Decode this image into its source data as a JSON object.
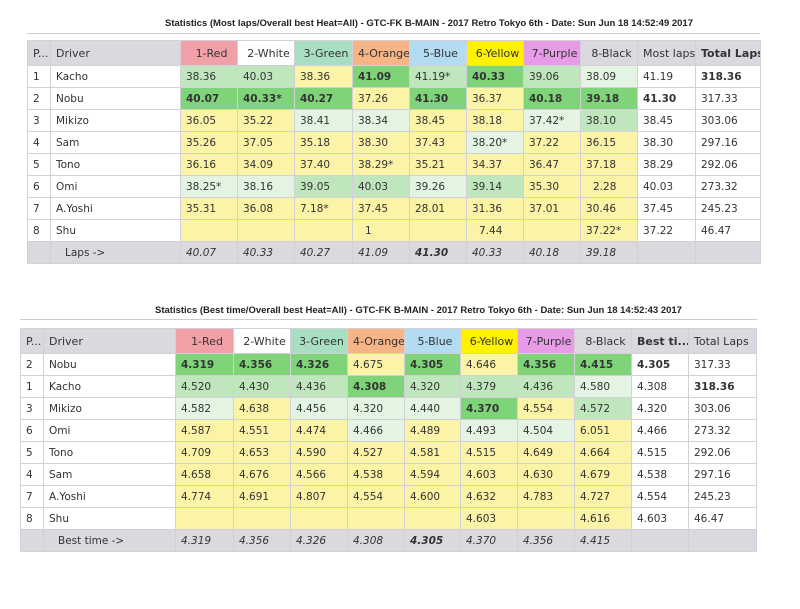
{
  "colors": {
    "1-Red": "#f2a0a8",
    "2-White": "#ffffff",
    "3-Green": "#a8dfc3",
    "4-Orange": "#f6b487",
    "5-Blue": "#b3dcf3",
    "6-Yellow": "#fff200",
    "7-Purple": "#e89ce8",
    "8-Black": "#dcd8e0"
  },
  "table1": {
    "title": "Statistics (Most laps/Overall best Heat=All) - GTC-FK B-MAIN - 2017 Retro Tokyo 6th - Date: Sun Jun 18 14:52:49 2017",
    "headers": [
      "P...",
      "Driver",
      "1-Red",
      "2-White",
      "3-Green",
      "4-Orange",
      "5-Blue",
      "6-Yellow",
      "7-Purple",
      "8-Black",
      "Most laps",
      "Total Laps"
    ],
    "rows": [
      {
        "p": "1",
        "driver": "Kacho",
        "cells": [
          "38.36",
          "40.03",
          "38.36",
          "41.09",
          "41.19*",
          "40.33",
          "39.06",
          "38.09"
        ],
        "shade": "mmygmgml",
        "bold": "00010100",
        "best": "41.19",
        "total": "318.36",
        "total_bold": true
      },
      {
        "p": "2",
        "driver": "Nobu",
        "cells": [
          "40.07",
          "40.33*",
          "40.27",
          "37.26",
          "41.30",
          "36.37",
          "40.18",
          "39.18"
        ],
        "shade": "gggygygg",
        "bold": "11101011",
        "best": "41.30",
        "best_bold": true,
        "total": "317.33"
      },
      {
        "p": "3",
        "driver": "Mikizo",
        "cells": [
          "36.05",
          "35.22",
          "38.41",
          "38.34",
          "38.45",
          "38.18",
          "37.42*",
          "38.10"
        ],
        "shade": "yyllyylm",
        "bold": "00000000",
        "best": "38.45",
        "total": "303.06"
      },
      {
        "p": "4",
        "driver": "Sam",
        "cells": [
          "35.26",
          "37.05",
          "35.18",
          "38.30",
          "37.43",
          "38.20*",
          "37.22",
          "36.15"
        ],
        "shade": "yyyyylyy",
        "bold": "00000000",
        "best": "38.30",
        "total": "297.16"
      },
      {
        "p": "5",
        "driver": "Tono",
        "cells": [
          "36.16",
          "34.09",
          "37.40",
          "38.29*",
          "35.21",
          "34.37",
          "36.47",
          "37.18"
        ],
        "shade": "yyyyyyyy",
        "bold": "00000000",
        "best": "38.29",
        "total": "292.06"
      },
      {
        "p": "6",
        "driver": "Omi",
        "cells": [
          "38.25*",
          "38.16",
          "39.05",
          "40.03",
          "39.26",
          "39.14",
          "35.30",
          "2.28"
        ],
        "shade": "llmmlmyy",
        "bold": "00000000",
        "best": "40.03",
        "total": "273.32"
      },
      {
        "p": "7",
        "driver": "A.Yoshi",
        "cells": [
          "35.31",
          "36.08",
          "7.18*",
          "37.45",
          "28.01",
          "31.36",
          "37.01",
          "30.46"
        ],
        "shade": "yyyyyyyy",
        "bold": "00000000",
        "best": "37.45",
        "total": "245.23"
      },
      {
        "p": "8",
        "driver": "Shu",
        "cells": [
          "",
          "",
          "",
          "1",
          "",
          "7.44",
          "",
          "37.22*"
        ],
        "shade": "yyyyyyyy",
        "bold": "00000000",
        "best": "37.22",
        "total": "46.47"
      }
    ],
    "footer": {
      "label": "Laps ->",
      "cells": [
        "40.07",
        "40.33",
        "40.27",
        "41.09",
        "41.30",
        "40.33",
        "40.18",
        "39.18"
      ],
      "bold": "00001000"
    }
  },
  "table2": {
    "title": "Statistics (Best time/Overall best Heat=All) - GTC-FK B-MAIN - 2017 Retro Tokyo 6th - Date: Sun Jun 18 14:52:43 2017",
    "headers": [
      "P...",
      "Driver",
      "1-Red",
      "2-White",
      "3-Green",
      "4-Orange",
      "5-Blue",
      "6-Yellow",
      "7-Purple",
      "8-Black",
      "Best ti...",
      "Total Laps"
    ],
    "rows": [
      {
        "p": "2",
        "driver": "Nobu",
        "cells": [
          "4.319",
          "4.356",
          "4.326",
          "4.675",
          "4.305",
          "4.646",
          "4.356",
          "4.415"
        ],
        "shade": "gggygygg",
        "bold": "11101011",
        "best": "4.305",
        "best_bold": true,
        "total": "317.33"
      },
      {
        "p": "1",
        "driver": "Kacho",
        "cells": [
          "4.520",
          "4.430",
          "4.436",
          "4.308",
          "4.320",
          "4.379",
          "4.436",
          "4.580"
        ],
        "shade": "mmmgmmml",
        "bold": "00010000",
        "best": "4.308",
        "total": "318.36",
        "total_bold": true
      },
      {
        "p": "3",
        "driver": "Mikizo",
        "cells": [
          "4.582",
          "4.638",
          "4.456",
          "4.320",
          "4.440",
          "4.370",
          "4.554",
          "4.572"
        ],
        "shade": "lylllgym",
        "bold": "00000100",
        "best": "4.320",
        "total": "303.06"
      },
      {
        "p": "6",
        "driver": "Omi",
        "cells": [
          "4.587",
          "4.551",
          "4.474",
          "4.466",
          "4.489",
          "4.493",
          "4.504",
          "6.051"
        ],
        "shade": "yyylylly",
        "bold": "00000000",
        "best": "4.466",
        "total": "273.32"
      },
      {
        "p": "5",
        "driver": "Tono",
        "cells": [
          "4.709",
          "4.653",
          "4.590",
          "4.527",
          "4.581",
          "4.515",
          "4.649",
          "4.664"
        ],
        "shade": "yyyyyyyy",
        "bold": "00000000",
        "best": "4.515",
        "total": "292.06"
      },
      {
        "p": "4",
        "driver": "Sam",
        "cells": [
          "4.658",
          "4.676",
          "4.566",
          "4.538",
          "4.594",
          "4.603",
          "4.630",
          "4.679"
        ],
        "shade": "yyyyyyyy",
        "bold": "00000000",
        "best": "4.538",
        "total": "297.16"
      },
      {
        "p": "7",
        "driver": "A.Yoshi",
        "cells": [
          "4.774",
          "4.691",
          "4.807",
          "4.554",
          "4.600",
          "4.632",
          "4.783",
          "4.727"
        ],
        "shade": "yyyyyyyy",
        "bold": "00000000",
        "best": "4.554",
        "total": "245.23"
      },
      {
        "p": "8",
        "driver": "Shu",
        "cells": [
          "",
          "",
          "",
          "",
          "",
          "4.603",
          "",
          "4.616"
        ],
        "shade": "yyyyyyyy",
        "bold": "00000000",
        "best": "4.603",
        "total": "46.47"
      }
    ],
    "footer": {
      "label": "Best time ->",
      "cells": [
        "4.319",
        "4.356",
        "4.326",
        "4.308",
        "4.305",
        "4.370",
        "4.356",
        "4.415"
      ],
      "bold": "00001000"
    }
  }
}
